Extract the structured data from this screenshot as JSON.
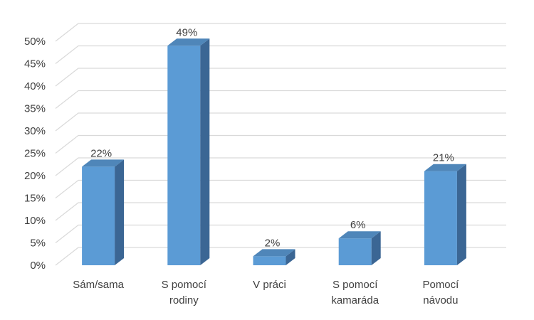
{
  "chart_data": {
    "type": "bar",
    "style": "3d-column",
    "categories": [
      [
        "Sám/sama"
      ],
      [
        "S pomocí",
        "rodiny"
      ],
      [
        "V práci"
      ],
      [
        "S pomocí",
        "kamaráda"
      ],
      [
        "Pomocí",
        "návodu"
      ]
    ],
    "values": [
      22,
      49,
      2,
      6,
      21
    ],
    "data_labels": [
      "22%",
      "49%",
      "2%",
      "6%",
      "21%"
    ],
    "y_ticks": [
      "0%",
      "5%",
      "10%",
      "15%",
      "20%",
      "25%",
      "30%",
      "35%",
      "40%",
      "45%",
      "50%"
    ],
    "ylim": [
      0,
      50
    ],
    "ystep": 5,
    "title": "",
    "xlabel": "",
    "ylabel": "",
    "grid": true,
    "legend": "none",
    "colors": {
      "bar_front": "#5b9bd5",
      "bar_top": "#4f86b9",
      "bar_side": "#3b6694",
      "gridline": "#d9d9d9",
      "text": "#404040"
    }
  }
}
